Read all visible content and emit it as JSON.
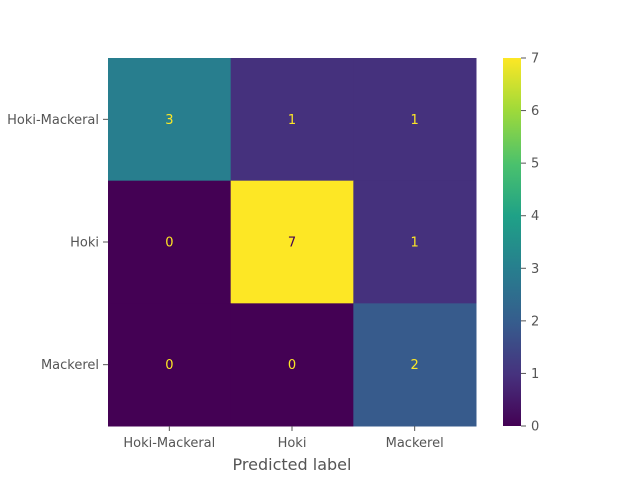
{
  "chart_data": {
    "type": "heatmap",
    "title": "",
    "xlabel": "Predicted label",
    "ylabel": "",
    "x_categories": [
      "Hoki-Mackeral",
      "Hoki",
      "Mackerel"
    ],
    "y_categories": [
      "Hoki-Mackeral",
      "Hoki",
      "Mackerel"
    ],
    "values": [
      [
        3,
        1,
        1
      ],
      [
        0,
        7,
        1
      ],
      [
        0,
        0,
        2
      ]
    ],
    "colorbar": {
      "min": 0,
      "max": 7,
      "ticks": [
        "0",
        "1",
        "2",
        "3",
        "4",
        "5",
        "6",
        "7"
      ],
      "colormap": "viridis"
    },
    "grid": false
  }
}
